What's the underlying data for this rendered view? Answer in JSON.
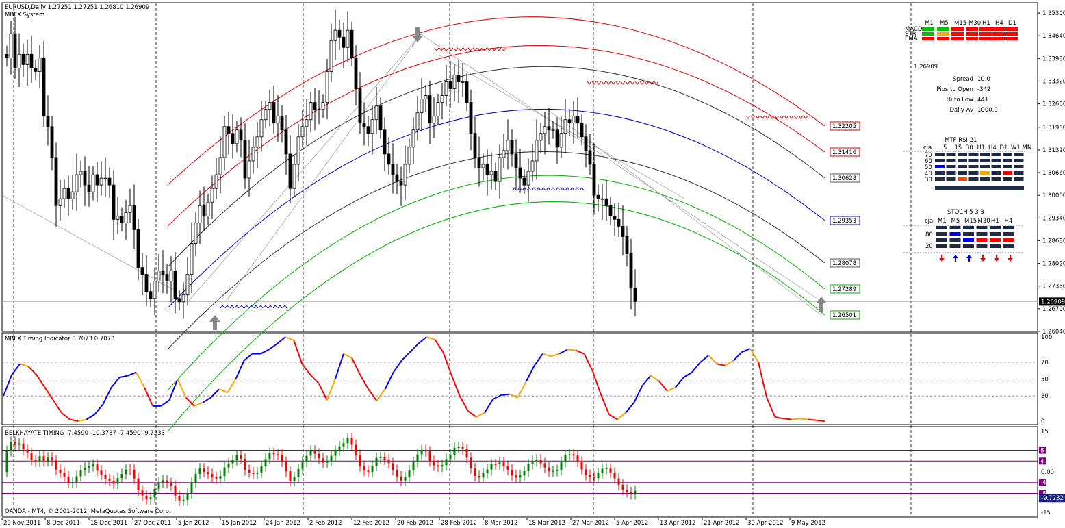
{
  "colors": {
    "bg": "#ffffff",
    "candle": "#000000",
    "grid": "#000000",
    "band_red": "#e00000",
    "band_dark": "#222222",
    "band_blue": "#0000cc",
    "band_green": "#00b000",
    "timing_up": "#0000ff",
    "timing_down": "#ff0000",
    "timing_turn": "#ffa500",
    "belk_up": "#008000",
    "belk_down": "#ff0000",
    "belk_level": "#800080"
  },
  "price_chart": {
    "title": "EURUSD,Daily  1.27251 1.27251 1.26810 1.26909",
    "subtitle": "MBFX System",
    "y_ticks": [
      "1.35300",
      "1.34640",
      "1.33980",
      "1.33320",
      "1.32660",
      "1.31980",
      "1.31320",
      "1.30660",
      "1.30000",
      "1.29340",
      "1.28680",
      "1.28020",
      "1.27360",
      "1.26700",
      "1.26040"
    ],
    "current_price": "1.26909",
    "band_labels": [
      {
        "text": "1.32205",
        "color": "#e00000"
      },
      {
        "text": "1.31416",
        "color": "#e00000"
      },
      {
        "text": "1.30628",
        "color": "#555555"
      },
      {
        "text": "1.29353",
        "color": "#0000cc"
      },
      {
        "text": "1.28078",
        "color": "#555555"
      },
      {
        "text": "1.27289",
        "color": "#00b000"
      },
      {
        "text": "1.26501",
        "color": "#00b000"
      }
    ]
  },
  "dashboard": {
    "tf_header": [
      "M1",
      "M5",
      "M15",
      "M30",
      "H1",
      "H4",
      "D1"
    ],
    "rows": [
      "MACD",
      "STR",
      "EMA"
    ],
    "big_price": "1.26909",
    "stats": [
      {
        "label": "Spread",
        "value": "10.0",
        "value_color": "#ffa500"
      },
      {
        "label": "Pips to Open",
        "value": "-342",
        "value_color": "#ff4500"
      },
      {
        "label": "Hi to Low",
        "value": "441",
        "value_color": "#ffa500"
      },
      {
        "label": "Daily Av",
        "value": "1000.0",
        "value_color": "#ff4500"
      }
    ],
    "rsi_title": "MTF RSI  21",
    "rsi_header": [
      "cja",
      "5",
      "15",
      "30",
      "H1",
      "H4",
      "D1",
      "W1",
      "MN"
    ],
    "rsi_levels": [
      "70",
      "60",
      "50",
      "40",
      "30"
    ],
    "stoch_title": "STOCH  5 3 3",
    "stoch_header": [
      "cja",
      "M1",
      "M5",
      "M15",
      "M30",
      "H1",
      "H4"
    ],
    "stoch_levels": [
      "80",
      "20"
    ],
    "stoch_arrows": [
      "down",
      "up",
      "up",
      "down",
      "down",
      "down"
    ]
  },
  "timing_panel": {
    "title": "MBFX Timing Indicator 0.7073 0.7073",
    "y_ticks": [
      "100",
      "70",
      "50",
      "30",
      "0"
    ]
  },
  "belk_panel": {
    "title": "BELKHAYATE TIMING  -7.4590 -10.3787 -7.4590 -9.7233",
    "y_ticks": [
      "15",
      "0.00",
      "-15"
    ],
    "level_labels": [
      "8",
      "4",
      "-4",
      "-8"
    ],
    "current": "-9.7232"
  },
  "footer": "OANDA - MT4, © 2001-2012, MetaQuotes Software Corp.",
  "x_axis_labels": [
    "29 Nov 2011",
    "8 Dec 2011",
    "18 Dec 2011",
    "27 Dec 2011",
    "5 Jan 2012",
    "15 Jan 2012",
    "24 Jan 2012",
    "2 Feb 2012",
    "12 Feb 2012",
    "20 Feb 2012",
    "28 Feb 2012",
    "8 Mar 2012",
    "18 Mar 2012",
    "27 Mar 2012",
    "5 Apr 2012",
    "13 Apr 2012",
    "21 Apr 2012",
    "30 Apr 2012",
    "9 May 2012"
  ],
  "chart_data": [
    {
      "type": "candlestick",
      "title": "EURUSD,Daily  1.27251 1.27251 1.26810 1.26909",
      "ylim": [
        1.2604,
        1.356
      ],
      "series": [
        {
          "name": "close",
          "values": [
            1.34,
            1.347,
            1.337,
            1.341,
            1.338,
            1.341,
            1.337,
            1.336,
            1.34,
            1.323,
            1.32,
            1.311,
            1.297,
            1.299,
            1.302,
            1.299,
            1.301,
            1.306,
            1.307,
            1.303,
            1.301,
            1.306,
            1.303,
            1.305,
            1.305,
            1.303,
            1.293,
            1.294,
            1.292,
            1.295,
            1.297,
            1.29,
            1.279,
            1.277,
            1.272,
            1.27,
            1.275,
            1.278,
            1.277,
            1.275,
            1.278,
            1.27,
            1.269,
            1.271,
            1.277,
            1.286,
            1.292,
            1.297,
            1.294,
            1.298,
            1.302,
            1.306,
            1.311,
            1.32,
            1.318,
            1.315,
            1.319,
            1.316,
            1.305,
            1.31,
            1.314,
            1.317,
            1.322,
            1.325,
            1.327,
            1.321,
            1.323,
            1.319,
            1.312,
            1.302,
            1.309,
            1.317,
            1.32,
            1.322,
            1.327,
            1.325,
            1.325,
            1.327,
            1.336,
            1.345,
            1.348,
            1.346,
            1.343,
            1.348,
            1.34,
            1.331,
            1.321,
            1.32,
            1.318,
            1.322,
            1.326,
            1.319,
            1.312,
            1.309,
            1.306,
            1.304,
            1.303,
            1.309,
            1.314,
            1.319,
            1.324,
            1.328,
            1.329,
            1.321,
            1.323,
            1.327,
            1.329,
            1.333,
            1.331,
            1.335,
            1.333,
            1.333,
            1.327,
            1.318,
            1.311,
            1.308,
            1.309,
            1.306,
            1.307,
            1.304,
            1.311,
            1.313,
            1.316,
            1.312,
            1.308,
            1.305,
            1.303,
            1.307,
            1.31,
            1.316,
            1.318,
            1.32,
            1.319,
            1.319,
            1.314,
            1.318,
            1.322,
            1.321,
            1.323,
            1.321,
            1.317,
            1.313,
            1.309,
            1.3,
            1.299,
            1.299,
            1.297,
            1.294,
            1.293,
            1.291,
            1.288,
            1.283,
            1.273,
            1.2691
          ]
        }
      ]
    },
    {
      "type": "line",
      "title": "MBFX Timing Indicator 0.7073 0.7073",
      "ylim": [
        0,
        100
      ],
      "series": [
        {
          "name": "timing",
          "values": [
            30,
            55,
            68,
            65,
            55,
            40,
            25,
            10,
            2,
            0,
            2,
            8,
            20,
            40,
            52,
            54,
            58,
            40,
            18,
            18,
            25,
            50,
            28,
            18,
            22,
            28,
            38,
            34,
            50,
            72,
            80,
            80,
            85,
            92,
            100,
            96,
            68,
            55,
            45,
            25,
            50,
            80,
            75,
            55,
            38,
            24,
            38,
            58,
            72,
            82,
            92,
            100,
            97,
            82,
            55,
            30,
            12,
            5,
            10,
            26,
            31,
            32,
            28,
            47,
            66,
            80,
            77,
            80,
            85,
            84,
            80,
            60,
            32,
            8,
            2,
            10,
            22,
            42,
            54,
            48,
            36,
            40,
            52,
            58,
            70,
            78,
            68,
            66,
            72,
            82,
            86,
            70,
            28,
            5,
            3,
            2,
            3,
            2,
            1,
            0
          ]
        }
      ]
    },
    {
      "type": "bar",
      "title": "BELKHAYATE TIMING  -7.4590 -10.3787 -7.4590 -9.7233",
      "ylim": [
        -15,
        15
      ],
      "series": [
        {
          "name": "belkhayate",
          "values": []
        }
      ]
    }
  ]
}
